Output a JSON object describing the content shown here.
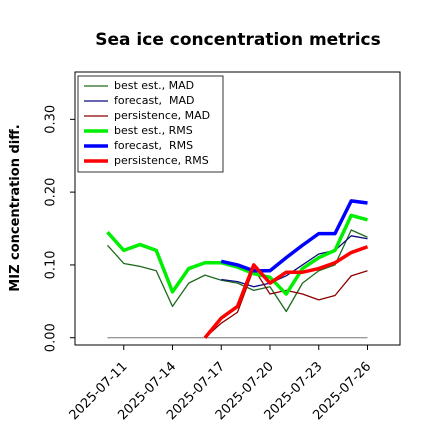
{
  "chart_data": {
    "type": "line",
    "title": "Sea ice concentration metrics",
    "y_label": "MIZ concentration diff.",
    "x": [
      "2025-07-10",
      "2025-07-11",
      "2025-07-12",
      "2025-07-13",
      "2025-07-14",
      "2025-07-15",
      "2025-07-16",
      "2025-07-17",
      "2025-07-18",
      "2025-07-19",
      "2025-07-20",
      "2025-07-21",
      "2025-07-22",
      "2025-07-23",
      "2025-07-24",
      "2025-07-25",
      "2025-07-26"
    ],
    "xlim": [
      "2025-07-08",
      "2025-07-28"
    ],
    "xticks": [
      "2025-07-11",
      "2025-07-14",
      "2025-07-17",
      "2025-07-20",
      "2025-07-23",
      "2025-07-26"
    ],
    "highlight_xtick": "2025-07-17",
    "highlight_color": "#2e8b2e",
    "ylim": [
      -0.01,
      0.365
    ],
    "yticks": [
      {
        "value": 0,
        "label": "0.00"
      },
      {
        "value": 0.1,
        "label": "0.10"
      },
      {
        "value": 0.2,
        "label": "0.20"
      },
      {
        "value": 0.3,
        "label": "0.30"
      }
    ],
    "zero_line": true,
    "legend": "upper left",
    "series": [
      {
        "name": "best est., MAD",
        "color": "#1e6b1e",
        "width": 1.3,
        "values": [
          0.127,
          0.102,
          0.098,
          0.092,
          0.043,
          0.075,
          0.086,
          0.079,
          0.075,
          0.065,
          0.07,
          0.036,
          0.075,
          0.092,
          0.1,
          0.148,
          0.138
        ]
      },
      {
        "name": "forecast,  MAD",
        "color": "#0a0a80",
        "width": 1.3,
        "values": [
          null,
          null,
          null,
          null,
          null,
          null,
          null,
          0.08,
          0.077,
          0.07,
          0.075,
          0.085,
          0.1,
          0.115,
          0.12,
          0.14,
          0.136
        ]
      },
      {
        "name": "persistence, MAD",
        "color": "#8b0000",
        "width": 1.3,
        "values": [
          null,
          null,
          null,
          null,
          null,
          null,
          0,
          0.02,
          0.035,
          0.095,
          0.06,
          0.065,
          0.06,
          0.052,
          0.058,
          0.085,
          0.092
        ]
      },
      {
        "name": "best est., RMS",
        "color": "#00ee00",
        "width": 3.5,
        "values": [
          0.145,
          0.12,
          0.128,
          0.12,
          0.063,
          0.095,
          0.103,
          0.103,
          0.097,
          0.088,
          0.083,
          0.06,
          0.095,
          0.11,
          0.12,
          0.168,
          0.162
        ]
      },
      {
        "name": "forecast,  RMS",
        "color": "#0000ff",
        "width": 3.5,
        "values": [
          null,
          null,
          null,
          null,
          null,
          null,
          null,
          0.105,
          0.1,
          0.092,
          0.092,
          0.11,
          0.127,
          0.143,
          0.143,
          0.188,
          0.185
        ]
      },
      {
        "name": "persistence, RMS",
        "color": "#ff0000",
        "width": 3.5,
        "values": [
          null,
          null,
          null,
          null,
          null,
          null,
          0,
          0.027,
          0.043,
          0.1,
          0.075,
          0.09,
          0.09,
          0.095,
          0.103,
          0.117,
          0.125
        ]
      }
    ]
  }
}
